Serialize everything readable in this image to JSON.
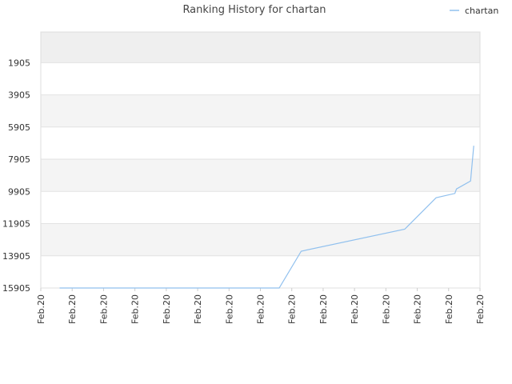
{
  "chart_data": {
    "type": "line",
    "title": "Ranking History for chartan",
    "legend": {
      "placement": "top-right",
      "entries": [
        "chartan"
      ]
    },
    "xlabel": "",
    "ylabel": "",
    "y_inverted": true,
    "ylim": [
      15905,
      0
    ],
    "grid": true,
    "y_ticks": [
      1905,
      3905,
      5905,
      7905,
      9905,
      11905,
      13905,
      15905
    ],
    "x_tick_labels": [
      "Feb.20",
      "Feb.20",
      "Feb.20",
      "Feb.20",
      "Feb.20",
      "Feb.20",
      "Feb.20",
      "Feb.20",
      "Feb.20",
      "Feb.20",
      "Feb.20",
      "Feb.20",
      "Feb.20",
      "Feb.20",
      "Feb.20"
    ],
    "x_range": [
      0,
      14
    ],
    "series": [
      {
        "name": "chartan",
        "color": "#90c0ee",
        "x": [
          0.6,
          7.6,
          8.3,
          11.6,
          12.6,
          13.2,
          13.25,
          13.7,
          13.8
        ],
        "y": [
          15905,
          15905,
          13620,
          12250,
          10300,
          10030,
          9750,
          9260,
          7070
        ]
      }
    ]
  }
}
